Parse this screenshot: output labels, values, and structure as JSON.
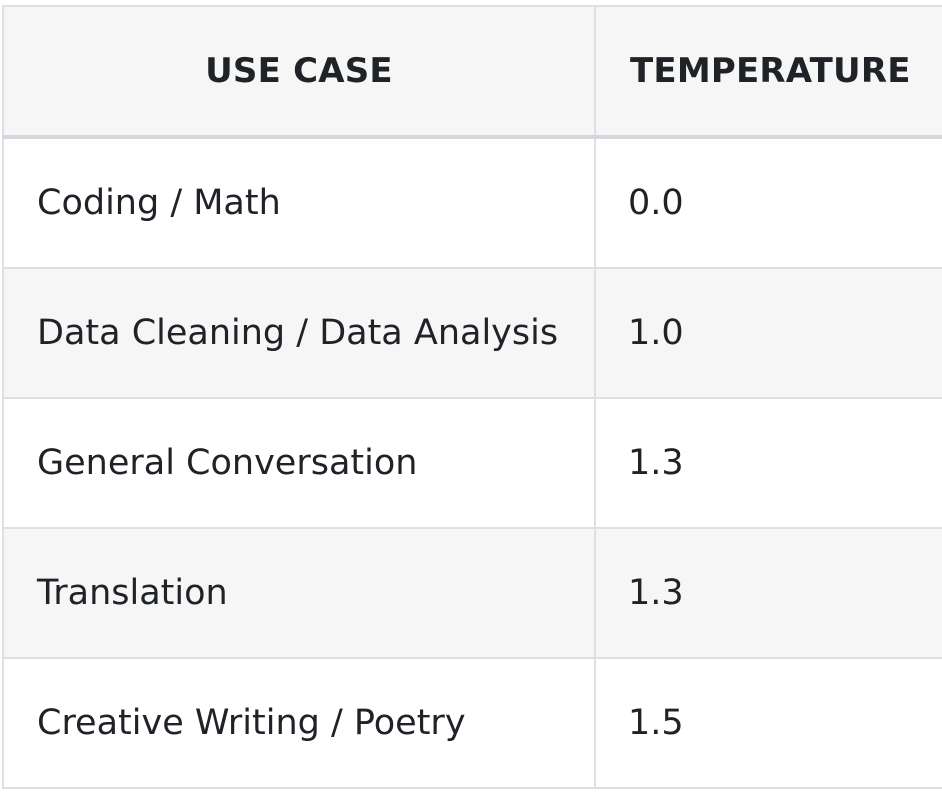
{
  "table": {
    "headers": [
      "USE CASE",
      "TEMPERATURE"
    ],
    "rows": [
      {
        "use_case": "Coding / Math",
        "temperature": "0.0"
      },
      {
        "use_case": "Data Cleaning / Data Analysis",
        "temperature": "1.0"
      },
      {
        "use_case": "General Conversation",
        "temperature": "1.3"
      },
      {
        "use_case": "Translation",
        "temperature": "1.3"
      },
      {
        "use_case": "Creative Writing / Poetry",
        "temperature": "1.5"
      }
    ]
  }
}
